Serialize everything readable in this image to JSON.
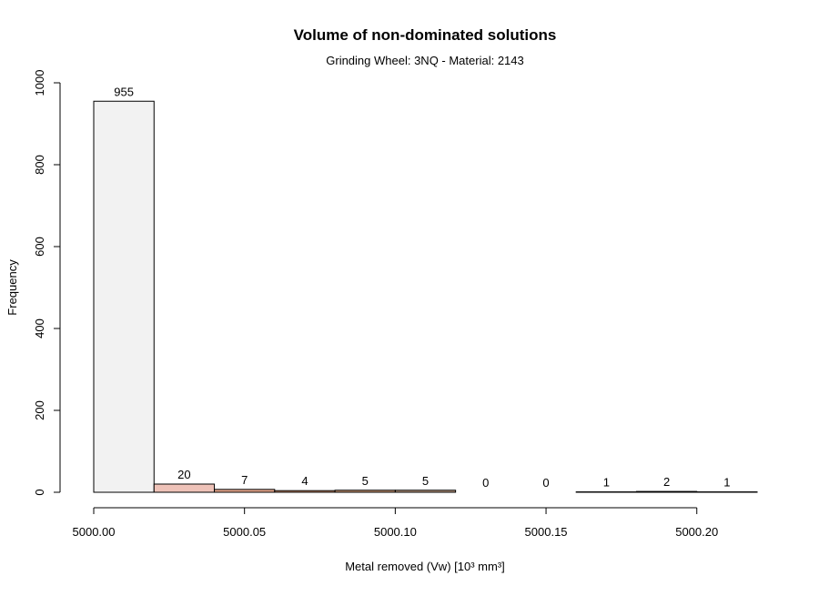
{
  "chart_data": {
    "type": "bar",
    "title": "Volume of non-dominated solutions",
    "subtitle": "Grinding Wheel: 3NQ - Material: 2143",
    "xlabel": "Metal removed (Vw) [10³ mm³]",
    "ylabel": "Frequency",
    "xlim": [
      5000.0,
      5000.22
    ],
    "ylim": [
      0,
      1000
    ],
    "x_ticks": [
      5000.0,
      5000.05,
      5000.1,
      5000.15,
      5000.2
    ],
    "x_tick_labels": [
      "5000.00",
      "5000.05",
      "5000.10",
      "5000.15",
      "5000.20"
    ],
    "y_ticks": [
      0,
      200,
      400,
      600,
      800,
      1000
    ],
    "y_tick_labels": [
      "0",
      "200",
      "400",
      "600",
      "800",
      "1000"
    ],
    "bin_edges": [
      5000.0,
      5000.02,
      5000.04,
      5000.06,
      5000.08,
      5000.1,
      5000.12,
      5000.14,
      5000.16,
      5000.18,
      5000.2,
      5000.22
    ],
    "values": [
      955,
      20,
      7,
      4,
      5,
      5,
      0,
      0,
      1,
      2,
      1
    ],
    "labels": [
      "955",
      "20",
      "7",
      "4",
      "5",
      "5",
      "0",
      "0",
      "1",
      "2",
      "1"
    ],
    "colors": [
      "#f2f2f2",
      "#eec2b8",
      "#e3a58a",
      "#d6946f",
      "#c99672",
      "#bc9a80",
      "#9c8f86",
      "#7f7a75",
      "#4e4c4a",
      "#2a2a2a",
      "#000000"
    ],
    "grid": false,
    "legend": "none"
  }
}
